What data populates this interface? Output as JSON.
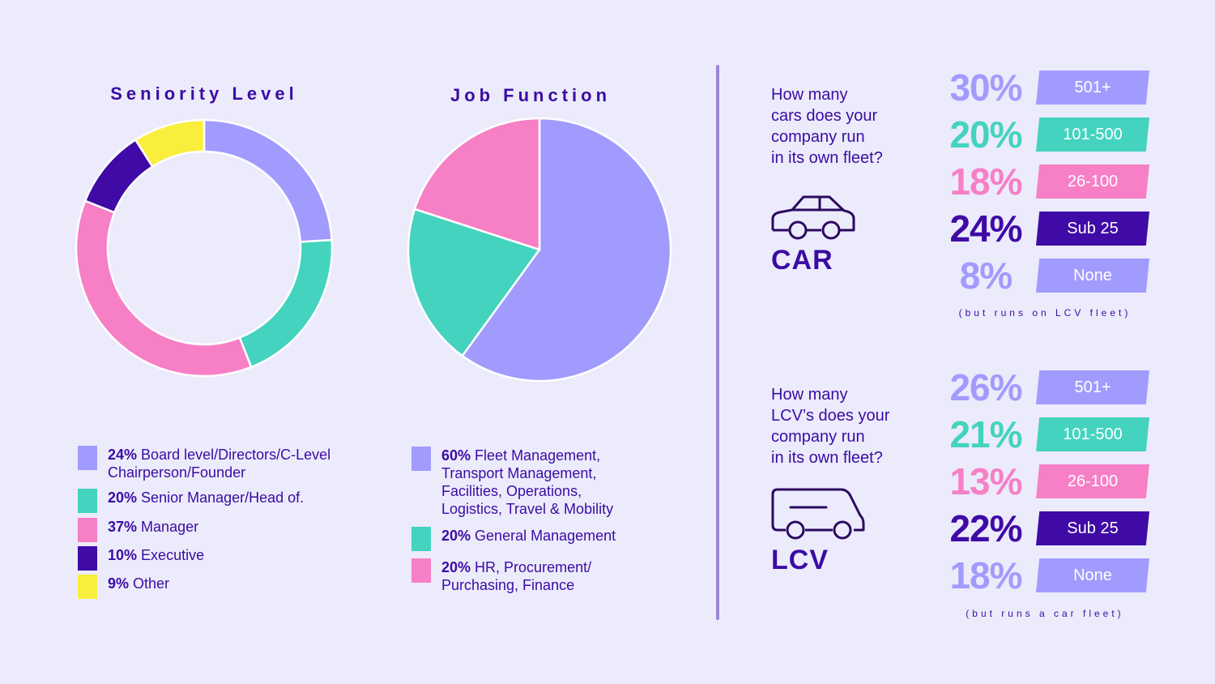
{
  "colors": {
    "lavender": "#a29bfe",
    "teal": "#44d3bf",
    "pink": "#f77fc6",
    "indigo": "#3f0aa6",
    "yellow": "#f9ee3c",
    "text": "#3a0ca3",
    "divider": "#9b86d9"
  },
  "chart_data": [
    {
      "type": "pie",
      "variant": "donut",
      "title": "Seniority Level",
      "slices": [
        {
          "label": "Board level/Directors/C-Level Chairperson/Founder",
          "pct_label": "24%",
          "value": 24,
          "color": "#a29bfe"
        },
        {
          "label": "Senior Manager/Head of.",
          "pct_label": "20%",
          "value": 20,
          "color": "#44d3bf"
        },
        {
          "label": "Manager",
          "pct_label": "37%",
          "value": 37,
          "color": "#f77fc6"
        },
        {
          "label": "Executive",
          "pct_label": "10%",
          "value": 10,
          "color": "#3f0aa6"
        },
        {
          "label": "Other",
          "pct_label": "9%",
          "value": 9,
          "color": "#f9ee3c"
        }
      ]
    },
    {
      "type": "pie",
      "title": "Job Function",
      "slices": [
        {
          "label": "Fleet Management, Transport Management, Facilities, Operations, Logistics, Travel & Mobility",
          "pct_label": "60%",
          "value": 60,
          "color": "#a29bfe"
        },
        {
          "label": "General Management",
          "pct_label": "20%",
          "value": 20,
          "color": "#44d3bf"
        },
        {
          "label": "HR, Procurement/ Purchasing, Finance",
          "pct_label": "20%",
          "value": 20,
          "color": "#f77fc6"
        }
      ]
    },
    {
      "type": "table",
      "title": "CAR",
      "question": [
        "How many",
        "cars does your",
        "company run",
        "in its own fleet?"
      ],
      "rows": [
        {
          "pct": "30%",
          "value": 30,
          "category": "501+",
          "color": "#a29bfe"
        },
        {
          "pct": "20%",
          "value": 20,
          "category": "101-500",
          "color": "#44d3bf"
        },
        {
          "pct": "18%",
          "value": 18,
          "category": "26-100",
          "color": "#f77fc6"
        },
        {
          "pct": "24%",
          "value": 24,
          "category": "Sub 25",
          "color": "#3f0aa6"
        },
        {
          "pct": "8%",
          "value": 8,
          "category": "None",
          "color": "#a29bfe"
        }
      ],
      "note": "(but runs on LCV fleet)"
    },
    {
      "type": "table",
      "title": "LCV",
      "question": [
        "How many",
        "LCV’s does your",
        "company run",
        "in its own fleet?"
      ],
      "rows": [
        {
          "pct": "26%",
          "value": 26,
          "category": "501+",
          "color": "#a29bfe"
        },
        {
          "pct": "21%",
          "value": 21,
          "category": "101-500",
          "color": "#44d3bf"
        },
        {
          "pct": "13%",
          "value": 13,
          "category": "26-100",
          "color": "#f77fc6"
        },
        {
          "pct": "22%",
          "value": 22,
          "category": "Sub 25",
          "color": "#3f0aa6"
        },
        {
          "pct": "18%",
          "value": 18,
          "category": "None",
          "color": "#a29bfe"
        }
      ],
      "note": "(but runs a car fleet)"
    }
  ]
}
